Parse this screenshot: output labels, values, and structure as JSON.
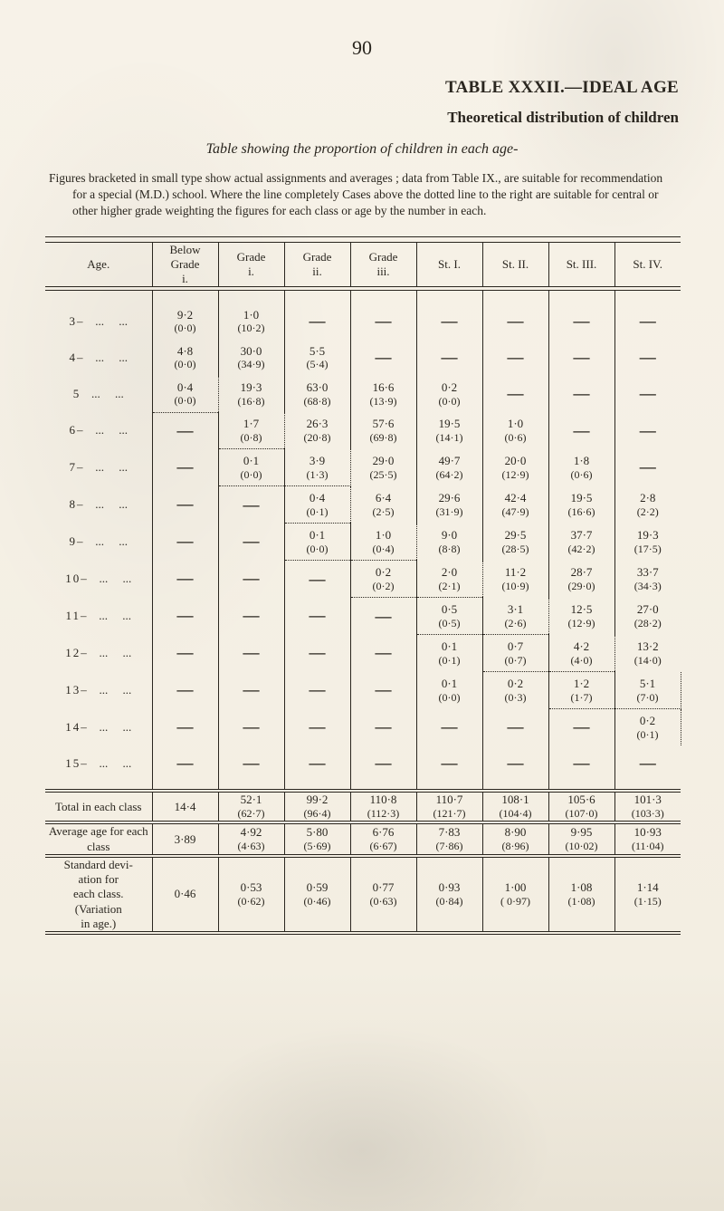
{
  "page_number": "90",
  "title_line": "TABLE XXXII.—IDEAL AGE",
  "subtitle_line": "Theoretical distribution of children",
  "table_caption": "Table showing the proportion of children in each age-",
  "notes": "Figures bracketed in small type show actual assignments and averages ; data from Table IX., are suitable for recommendation for a special (M.D.) school. Where the line completely Cases above the dotted line to the right are suitable for central or other higher grade weighting the figures for each class or age by the number in each.",
  "headers": {
    "age": "Age.",
    "below_i": "Below\nGrade\ni.",
    "grade_i": "Grade\ni.",
    "grade_ii": "Grade\nii.",
    "grade_iii": "Grade\niii.",
    "st_i": "St. I.",
    "st_ii": "St. II.",
    "st_iii": "St. III.",
    "st_iv": "St. IV."
  },
  "rows": [
    {
      "age": "3–",
      "cells": [
        {
          "top": "9·2",
          "bot": "(0·0)"
        },
        {
          "top": "1·0",
          "bot": "(10·2)"
        },
        {
          "dash": true
        },
        {
          "dash": true
        },
        {
          "dash": true
        },
        {
          "dash": true
        },
        {
          "dash": true
        },
        {
          "dash": true
        }
      ]
    },
    {
      "age": "4–",
      "cells": [
        {
          "top": "4·8",
          "bot": "(0·0)"
        },
        {
          "top": "30·0",
          "bot": "(34·9)"
        },
        {
          "top": "5·5",
          "bot": "(5·4)"
        },
        {
          "dash": true
        },
        {
          "dash": true
        },
        {
          "dash": true
        },
        {
          "dash": true
        },
        {
          "dash": true
        }
      ]
    },
    {
      "age": "5",
      "cells": [
        {
          "top": "0·4",
          "bot": "(0·0)"
        },
        {
          "top": "19·3",
          "bot": "(16·8)"
        },
        {
          "top": "63·0",
          "bot": "(68·8)"
        },
        {
          "top": "16·6",
          "bot": "(13·9)"
        },
        {
          "top": "0·2",
          "bot": "(0·0)"
        },
        {
          "dash": true
        },
        {
          "dash": true
        },
        {
          "dash": true
        }
      ],
      "db_cols": [
        1
      ],
      "dr_cols": [
        1
      ]
    },
    {
      "age": "6–",
      "cells": [
        {
          "dash": true
        },
        {
          "top": "1·7",
          "bot": "(0·8)"
        },
        {
          "top": "26·3",
          "bot": "(20·8)"
        },
        {
          "top": "57·6",
          "bot": "(69·8)"
        },
        {
          "top": "19·5",
          "bot": "(14·1)"
        },
        {
          "top": "1·0",
          "bot": "(0·6)"
        },
        {
          "dash": true
        },
        {
          "dash": true
        }
      ],
      "db_cols": [
        2
      ],
      "dr_cols": [
        2
      ]
    },
    {
      "age": "7–",
      "cells": [
        {
          "dash": true
        },
        {
          "top": "0·1",
          "bot": "(0·0)"
        },
        {
          "top": "3·9",
          "bot": "(1·3)"
        },
        {
          "top": "29·0",
          "bot": "(25·5)"
        },
        {
          "top": "49·7",
          "bot": "(64·2)"
        },
        {
          "top": "20·0",
          "bot": "(12·9)"
        },
        {
          "top": "1·8",
          "bot": "(0·6)"
        },
        {
          "dash": true
        }
      ],
      "db_cols": [
        2,
        3
      ],
      "dr_cols": [
        3
      ]
    },
    {
      "age": "8–",
      "cells": [
        {
          "dash": true
        },
        {
          "dash": true
        },
        {
          "top": "0·4",
          "bot": "(0·1)"
        },
        {
          "top": "6·4",
          "bot": "(2·5)"
        },
        {
          "top": "29·6",
          "bot": "(31·9)"
        },
        {
          "top": "42·4",
          "bot": "(47·9)"
        },
        {
          "top": "19·5",
          "bot": "(16·6)"
        },
        {
          "top": "2·8",
          "bot": "(2·2)"
        }
      ],
      "db_cols": [
        3
      ],
      "dr_cols": [
        3
      ]
    },
    {
      "age": "9–",
      "cells": [
        {
          "dash": true
        },
        {
          "dash": true
        },
        {
          "top": "0·1",
          "bot": "(0·0)"
        },
        {
          "top": "1·0",
          "bot": "(0·4)"
        },
        {
          "top": "9·0",
          "bot": "(8·8)"
        },
        {
          "top": "29·5",
          "bot": "(28·5)"
        },
        {
          "top": "37·7",
          "bot": "(42·2)"
        },
        {
          "top": "19·3",
          "bot": "(17·5)"
        }
      ],
      "db_cols": [
        3,
        4
      ],
      "dr_cols": [
        4
      ]
    },
    {
      "age": "10–",
      "cells": [
        {
          "dash": true
        },
        {
          "dash": true
        },
        {
          "dash": true
        },
        {
          "top": "0·2",
          "bot": "(0·2)"
        },
        {
          "top": "2·0",
          "bot": "(2·1)"
        },
        {
          "top": "11·2",
          "bot": "(10·9)"
        },
        {
          "top": "28·7",
          "bot": "(29·0)"
        },
        {
          "top": "33·7",
          "bot": "(34·3)"
        }
      ],
      "db_cols": [
        4,
        5
      ],
      "dr_cols": [
        5
      ]
    },
    {
      "age": "11–",
      "cells": [
        {
          "dash": true
        },
        {
          "dash": true
        },
        {
          "dash": true
        },
        {
          "dash": true
        },
        {
          "top": "0·5",
          "bot": "(0·5)"
        },
        {
          "top": "3·1",
          "bot": "(2·6)"
        },
        {
          "top": "12·5",
          "bot": "(12·9)"
        },
        {
          "top": "27·0",
          "bot": "(28·2)"
        }
      ],
      "db_cols": [
        5,
        6
      ],
      "dr_cols": [
        6
      ]
    },
    {
      "age": "12–",
      "cells": [
        {
          "dash": true
        },
        {
          "dash": true
        },
        {
          "dash": true
        },
        {
          "dash": true
        },
        {
          "top": "0·1",
          "bot": "(0·1)"
        },
        {
          "top": "0·7",
          "bot": "(0·7)"
        },
        {
          "top": "4·2",
          "bot": "(4·0)"
        },
        {
          "top": "13·2",
          "bot": "(14·0)"
        }
      ],
      "db_cols": [
        6,
        7
      ],
      "dr_cols": [
        7
      ]
    },
    {
      "age": "13–",
      "cells": [
        {
          "dash": true
        },
        {
          "dash": true
        },
        {
          "dash": true
        },
        {
          "dash": true
        },
        {
          "top": "0·1",
          "bot": "(0·0)"
        },
        {
          "top": "0·2",
          "bot": "(0·3)"
        },
        {
          "top": "1·2",
          "bot": "(1·7)"
        },
        {
          "top": "5·1",
          "bot": "(7·0)"
        }
      ],
      "db_cols": [
        7,
        8
      ],
      "dr_cols": [
        8
      ]
    },
    {
      "age": "14–",
      "cells": [
        {
          "dash": true
        },
        {
          "dash": true
        },
        {
          "dash": true
        },
        {
          "dash": true
        },
        {
          "dash": true
        },
        {
          "dash": true
        },
        {
          "dash": true
        },
        {
          "top": "0·2",
          "bot": "(0·1)"
        }
      ],
      "dr_cols": [
        8
      ]
    },
    {
      "age": "15–",
      "cells": [
        {
          "dash": true
        },
        {
          "dash": true
        },
        {
          "dash": true
        },
        {
          "dash": true
        },
        {
          "dash": true
        },
        {
          "dash": true
        },
        {
          "dash": true
        },
        {
          "dash": true
        }
      ]
    }
  ],
  "summary_rows": [
    {
      "age": "Total in each class",
      "vals": [
        "14·4",
        "52·1\n(62·7)",
        "99·2\n(96·4)",
        "110·8\n(112·3)",
        "110·7\n(121·7)",
        "108·1\n(104·4)",
        "105·6\n(107·0)",
        "101·3\n(103·3)"
      ]
    },
    {
      "age": "Average age for each class",
      "vals": [
        "3·89",
        "4·92\n(4·63)",
        "5·80\n(5·69)",
        "6·76\n(6·67)",
        "7·83\n(7·86)",
        "8·90\n(8·96)",
        "9·95\n(10·02)",
        "10·93\n(11·04)"
      ]
    },
    {
      "age": "Standard devi-\nation for\neach class.\n(Variation\nin age.)",
      "vals": [
        "0·46",
        "0·53\n(0·62)",
        "0·59\n(0·46)",
        "0·77\n(0·63)",
        "0·93\n(0·84)",
        "1·00\n( 0·97)",
        "1·08\n(1·08)",
        "1·14\n(1·15)"
      ]
    }
  ]
}
